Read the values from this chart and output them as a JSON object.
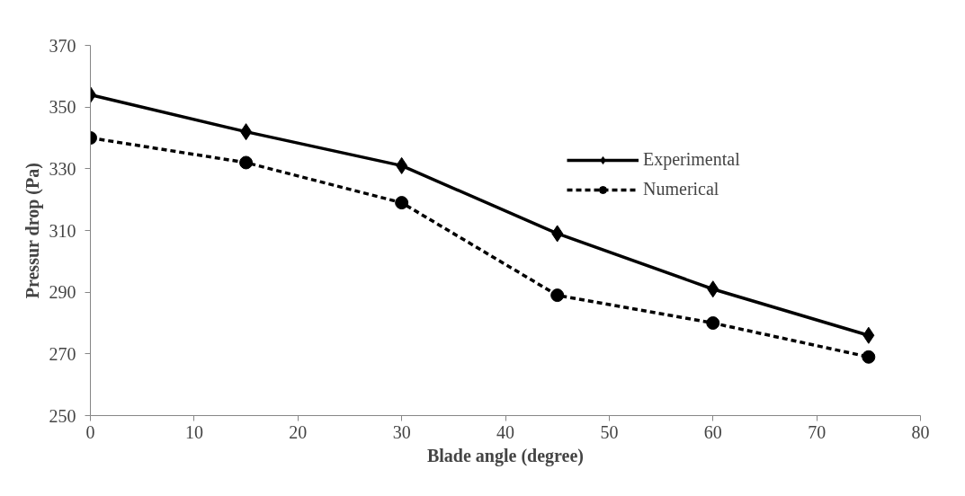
{
  "chart_data": {
    "type": "line",
    "xlabel": "Blade angle (degree)",
    "ylabel": "Pressur drop (Pa)",
    "x": [
      0,
      15,
      30,
      45,
      60,
      75
    ],
    "series": [
      {
        "name": "Experimental",
        "color": "#000000",
        "marker": "diamond",
        "line_style": "solid",
        "values": [
          354,
          342,
          331,
          309,
          291,
          276
        ]
      },
      {
        "name": "Numerical",
        "color": "#000000",
        "marker": "circle",
        "line_style": "dashed",
        "values": [
          340,
          332,
          319,
          289,
          280,
          269
        ]
      }
    ],
    "xlim": [
      0,
      80
    ],
    "xticks": [
      0,
      10,
      20,
      30,
      40,
      50,
      60,
      70,
      80
    ],
    "ylim": [
      250,
      370
    ],
    "yticks": [
      250,
      270,
      290,
      310,
      330,
      350,
      370
    ],
    "grid": false,
    "legend": "top right"
  }
}
